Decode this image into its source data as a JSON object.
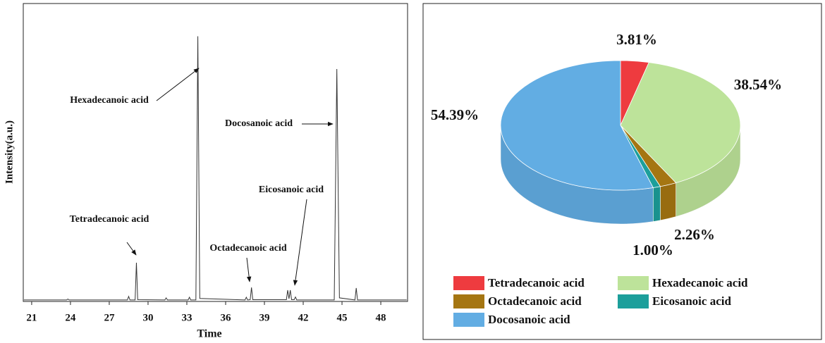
{
  "chart_data": [
    {
      "type": "line",
      "xlabel": "Time",
      "ylabel": "Intensity(a.u.)",
      "xlim": [
        20.35,
        50.07
      ],
      "xticks": [
        21,
        24,
        27,
        30,
        33,
        36,
        39,
        42,
        45,
        48
      ],
      "ylim": [
        0,
        100
      ],
      "color": "#333333",
      "x": [
        20.4,
        23.7,
        23.8,
        23.9,
        28.4,
        28.5,
        28.6,
        29.0,
        29.1,
        29.2,
        31.3,
        31.4,
        31.5,
        33.1,
        33.2,
        33.3,
        33.7,
        33.85,
        34.0,
        37.5,
        37.6,
        37.7,
        37.9,
        38.0,
        38.1,
        40.7,
        40.8,
        40.9,
        41.0,
        41.1,
        41.3,
        41.4,
        41.5,
        44.4,
        44.6,
        44.8,
        46.0,
        46.1,
        46.2,
        50.0
      ],
      "values": [
        0.5,
        0.5,
        0.8,
        0.5,
        0.5,
        1.7,
        0.5,
        0.5,
        13,
        0.6,
        0.5,
        1.2,
        0.5,
        0.5,
        1.4,
        0.5,
        0.5,
        89,
        1,
        0.5,
        1.4,
        0.5,
        0.6,
        4.7,
        0.6,
        0.6,
        3.8,
        0.9,
        3.8,
        0.6,
        0.6,
        1.5,
        0.5,
        0.5,
        78,
        1.2,
        0.5,
        4.5,
        0.5,
        0.5
      ],
      "annotations": [
        "Tetradecanoic acid",
        "Hexadecanoic acid",
        "Docosanoic acid",
        "Eicosanoic acid",
        "Octadecanoic acid"
      ]
    },
    {
      "type": "pie",
      "categories": [
        "Tetradecanoic acid",
        "Hexadecanoic acid",
        "Octadecanoic acid",
        "Eicosanoic acid",
        "Docosanoic acid"
      ],
      "values": [
        3.81,
        38.54,
        2.26,
        1.0,
        54.39
      ],
      "value_labels": [
        "3.81%",
        "38.54%",
        "2.26%",
        "1.00%",
        "54.39%"
      ],
      "colors": [
        "#ee3b3f",
        "#bde39a",
        "#a57612",
        "#1c9f9b",
        "#62ade3"
      ]
    }
  ]
}
